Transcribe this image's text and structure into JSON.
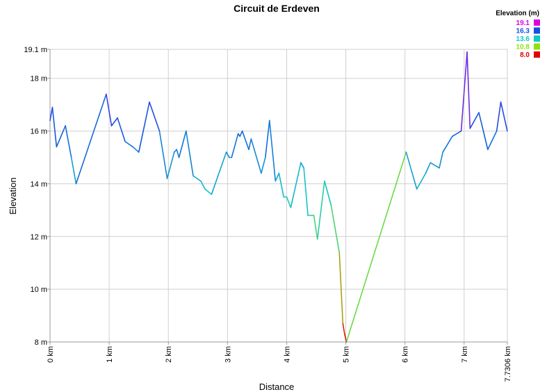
{
  "chart_data": {
    "type": "line",
    "title": "Circuit de Erdeven",
    "xlabel": "Distance",
    "ylabel": "Elevation",
    "xlim": [
      0,
      7.7306
    ],
    "ylim": [
      8,
      19.1
    ],
    "x_ticks": [
      {
        "value": 0,
        "label": "0 km"
      },
      {
        "value": 1,
        "label": "1 km"
      },
      {
        "value": 2,
        "label": "2 km"
      },
      {
        "value": 3,
        "label": "3 km"
      },
      {
        "value": 4,
        "label": "4 km"
      },
      {
        "value": 5,
        "label": "5 km"
      },
      {
        "value": 6,
        "label": "6 km"
      },
      {
        "value": 7,
        "label": "7 km"
      },
      {
        "value": 7.7306,
        "label": "7.7306 km"
      }
    ],
    "y_ticks": [
      {
        "value": 8,
        "label": "8 m"
      },
      {
        "value": 10,
        "label": "10 m"
      },
      {
        "value": 12,
        "label": "12 m"
      },
      {
        "value": 14,
        "label": "14 m"
      },
      {
        "value": 16,
        "label": "16 m"
      },
      {
        "value": 18,
        "label": "18 m"
      },
      {
        "value": 19.1,
        "label": "19.1 m"
      }
    ],
    "grid": true,
    "legend": {
      "title": "Elevation (m)",
      "placement": "top-right",
      "entries": [
        {
          "label": "19.1",
          "value": 19.1,
          "color": "#e000e0"
        },
        {
          "label": "16.3",
          "value": 16.3,
          "color": "#1550e0"
        },
        {
          "label": "13.6",
          "value": 13.6,
          "color": "#10c8c8"
        },
        {
          "label": "10.8",
          "value": 10.8,
          "color": "#90e010"
        },
        {
          "label": "8.0",
          "value": 8.0,
          "color": "#e00000"
        }
      ]
    },
    "series": [
      {
        "x": [
          0,
          0.04,
          0.11,
          0.26,
          0.36,
          0.44,
          0.95,
          1.04,
          1.14,
          1.27,
          1.4,
          1.5,
          1.68,
          1.85,
          1.98,
          2.1,
          2.14,
          2.18,
          2.3,
          2.42,
          2.55,
          2.62,
          2.73,
          2.98,
          3.03,
          3.07,
          3.18,
          3.21,
          3.25,
          3.36,
          3.4,
          3.57,
          3.64,
          3.71,
          3.81,
          3.87,
          3.95,
          4.0,
          4.07,
          4.24,
          4.29,
          4.36,
          4.46,
          4.52,
          4.64,
          4.75,
          4.89,
          4.95,
          4.98,
          5.01,
          6.02,
          6.2,
          6.35,
          6.43,
          6.58,
          6.64,
          6.8,
          6.95,
          7.05,
          7.1,
          7.25,
          7.4,
          7.55,
          7.62,
          7.73
        ],
        "y": [
          16.4,
          16.9,
          15.4,
          16.2,
          15.0,
          14.0,
          17.4,
          16.2,
          16.5,
          15.6,
          15.4,
          15.2,
          17.1,
          16.0,
          14.2,
          15.2,
          15.3,
          15.0,
          16.0,
          14.3,
          14.1,
          13.8,
          13.6,
          15.2,
          15.0,
          15.0,
          15.9,
          15.8,
          16.0,
          15.3,
          15.7,
          14.4,
          15.0,
          16.4,
          14.1,
          14.4,
          13.5,
          13.5,
          13.1,
          14.8,
          14.6,
          12.8,
          12.8,
          11.9,
          14.1,
          13.2,
          11.4,
          8.7,
          8.3,
          8.0,
          15.2,
          13.8,
          14.4,
          14.8,
          14.6,
          15.2,
          15.8,
          16.0,
          19.0,
          16.1,
          16.7,
          15.3,
          16.0,
          17.1,
          16.0
        ]
      }
    ]
  }
}
